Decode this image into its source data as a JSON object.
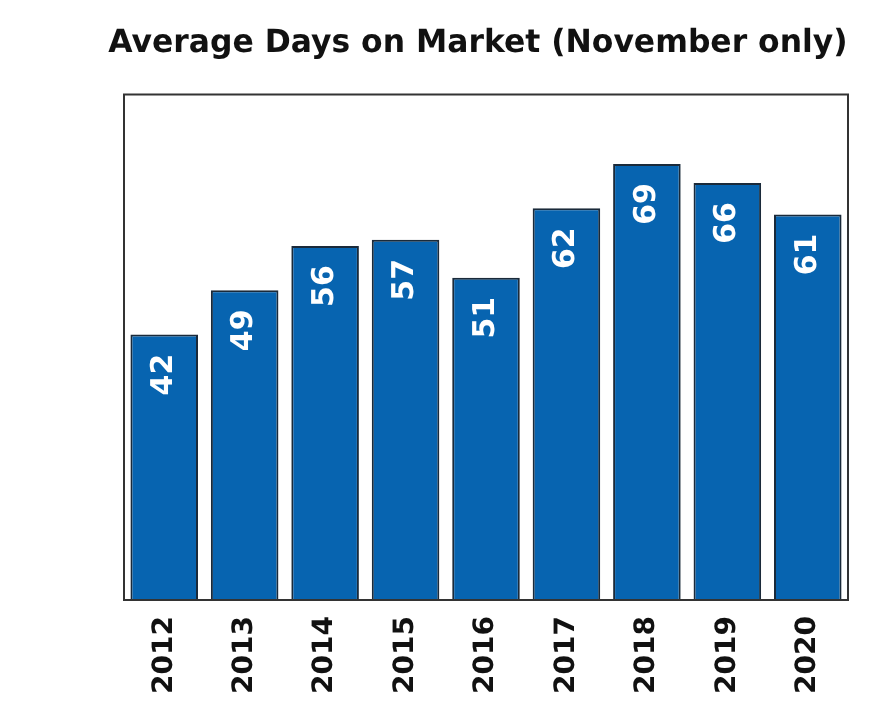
{
  "chart_data": {
    "type": "bar",
    "title": "Average Days on Market (November only)",
    "categories": [
      "2012",
      "2013",
      "2014",
      "2015",
      "2016",
      "2017",
      "2018",
      "2019",
      "2020"
    ],
    "values": [
      42,
      49,
      56,
      57,
      51,
      62,
      69,
      66,
      61
    ],
    "color": "#0764b0",
    "data_labels": true,
    "grid": false,
    "legend": false
  }
}
